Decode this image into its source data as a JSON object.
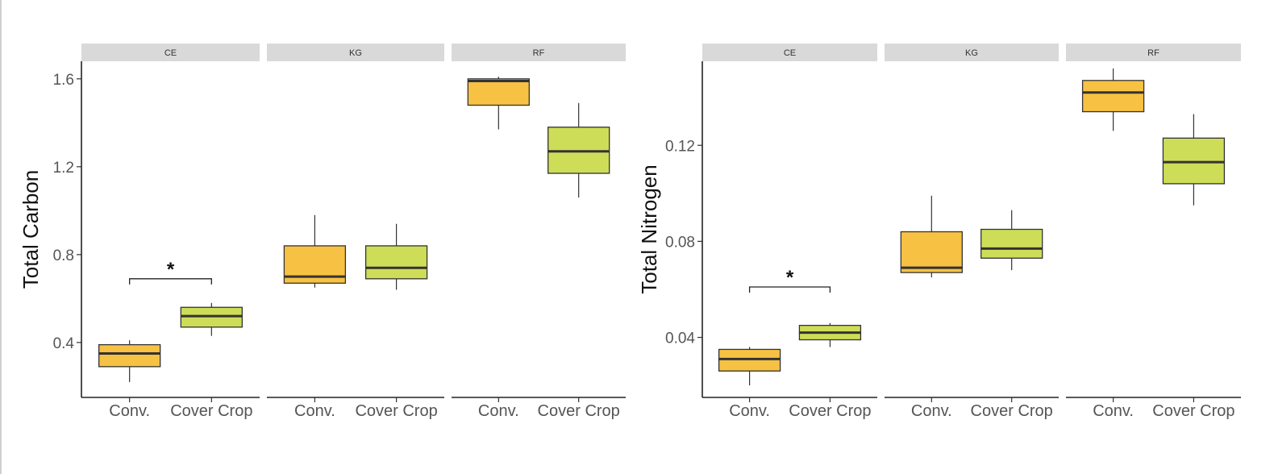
{
  "figure": {
    "colors": {
      "conv": "#F7C143",
      "cover": "#CEDD58",
      "strip_bg": "#D9D9D9",
      "median": "#333333",
      "outline": "#333333"
    }
  },
  "chart_data": [
    {
      "type": "box",
      "ylabel": "Total Carbon",
      "ylim": [
        0.15,
        1.68
      ],
      "yticks": [
        0.4,
        0.8,
        1.2,
        1.6
      ],
      "yticks_text": [
        "0.4",
        "0.8",
        "1.2",
        "1.6"
      ],
      "categories": [
        "Conv.",
        "Cover Crop"
      ],
      "panels": [
        {
          "name": "CE",
          "boxes": [
            {
              "category": "Conv.",
              "min": 0.22,
              "q1": 0.29,
              "median": 0.35,
              "q3": 0.39,
              "max": 0.41
            },
            {
              "category": "Cover Crop",
              "min": 0.43,
              "q1": 0.47,
              "median": 0.52,
              "q3": 0.56,
              "max": 0.58
            }
          ],
          "significance": {
            "label": "*",
            "y": 0.69
          }
        },
        {
          "name": "KG",
          "boxes": [
            {
              "category": "Conv.",
              "min": 0.65,
              "q1": 0.67,
              "median": 0.7,
              "q3": 0.84,
              "max": 0.98
            },
            {
              "category": "Cover Crop",
              "min": 0.64,
              "q1": 0.69,
              "median": 0.74,
              "q3": 0.84,
              "max": 0.94
            }
          ]
        },
        {
          "name": "RF",
          "boxes": [
            {
              "category": "Conv.",
              "min": 1.37,
              "q1": 1.48,
              "median": 1.59,
              "q3": 1.6,
              "max": 1.61
            },
            {
              "category": "Cover Crop",
              "min": 1.06,
              "q1": 1.17,
              "median": 1.27,
              "q3": 1.38,
              "max": 1.49
            }
          ]
        }
      ]
    },
    {
      "type": "box",
      "ylabel": "Total Nitrogen",
      "ylim": [
        0.015,
        0.155
      ],
      "yticks": [
        0.04,
        0.08,
        0.12
      ],
      "yticks_text": [
        "0.04",
        "0.08",
        "0.12"
      ],
      "categories": [
        "Conv.",
        "Cover Crop"
      ],
      "panels": [
        {
          "name": "CE",
          "boxes": [
            {
              "category": "Conv.",
              "min": 0.02,
              "q1": 0.026,
              "median": 0.031,
              "q3": 0.035,
              "max": 0.036
            },
            {
              "category": "Cover Crop",
              "min": 0.036,
              "q1": 0.039,
              "median": 0.042,
              "q3": 0.045,
              "max": 0.046
            }
          ],
          "significance": {
            "label": "*",
            "y": 0.061
          }
        },
        {
          "name": "KG",
          "boxes": [
            {
              "category": "Conv.",
              "min": 0.065,
              "q1": 0.067,
              "median": 0.069,
              "q3": 0.084,
              "max": 0.099
            },
            {
              "category": "Cover Crop",
              "min": 0.068,
              "q1": 0.073,
              "median": 0.077,
              "q3": 0.085,
              "max": 0.093
            }
          ]
        },
        {
          "name": "RF",
          "boxes": [
            {
              "category": "Conv.",
              "min": 0.126,
              "q1": 0.134,
              "median": 0.142,
              "q3": 0.147,
              "max": 0.152
            },
            {
              "category": "Cover Crop",
              "min": 0.095,
              "q1": 0.104,
              "median": 0.113,
              "q3": 0.123,
              "max": 0.133
            }
          ]
        }
      ]
    }
  ]
}
